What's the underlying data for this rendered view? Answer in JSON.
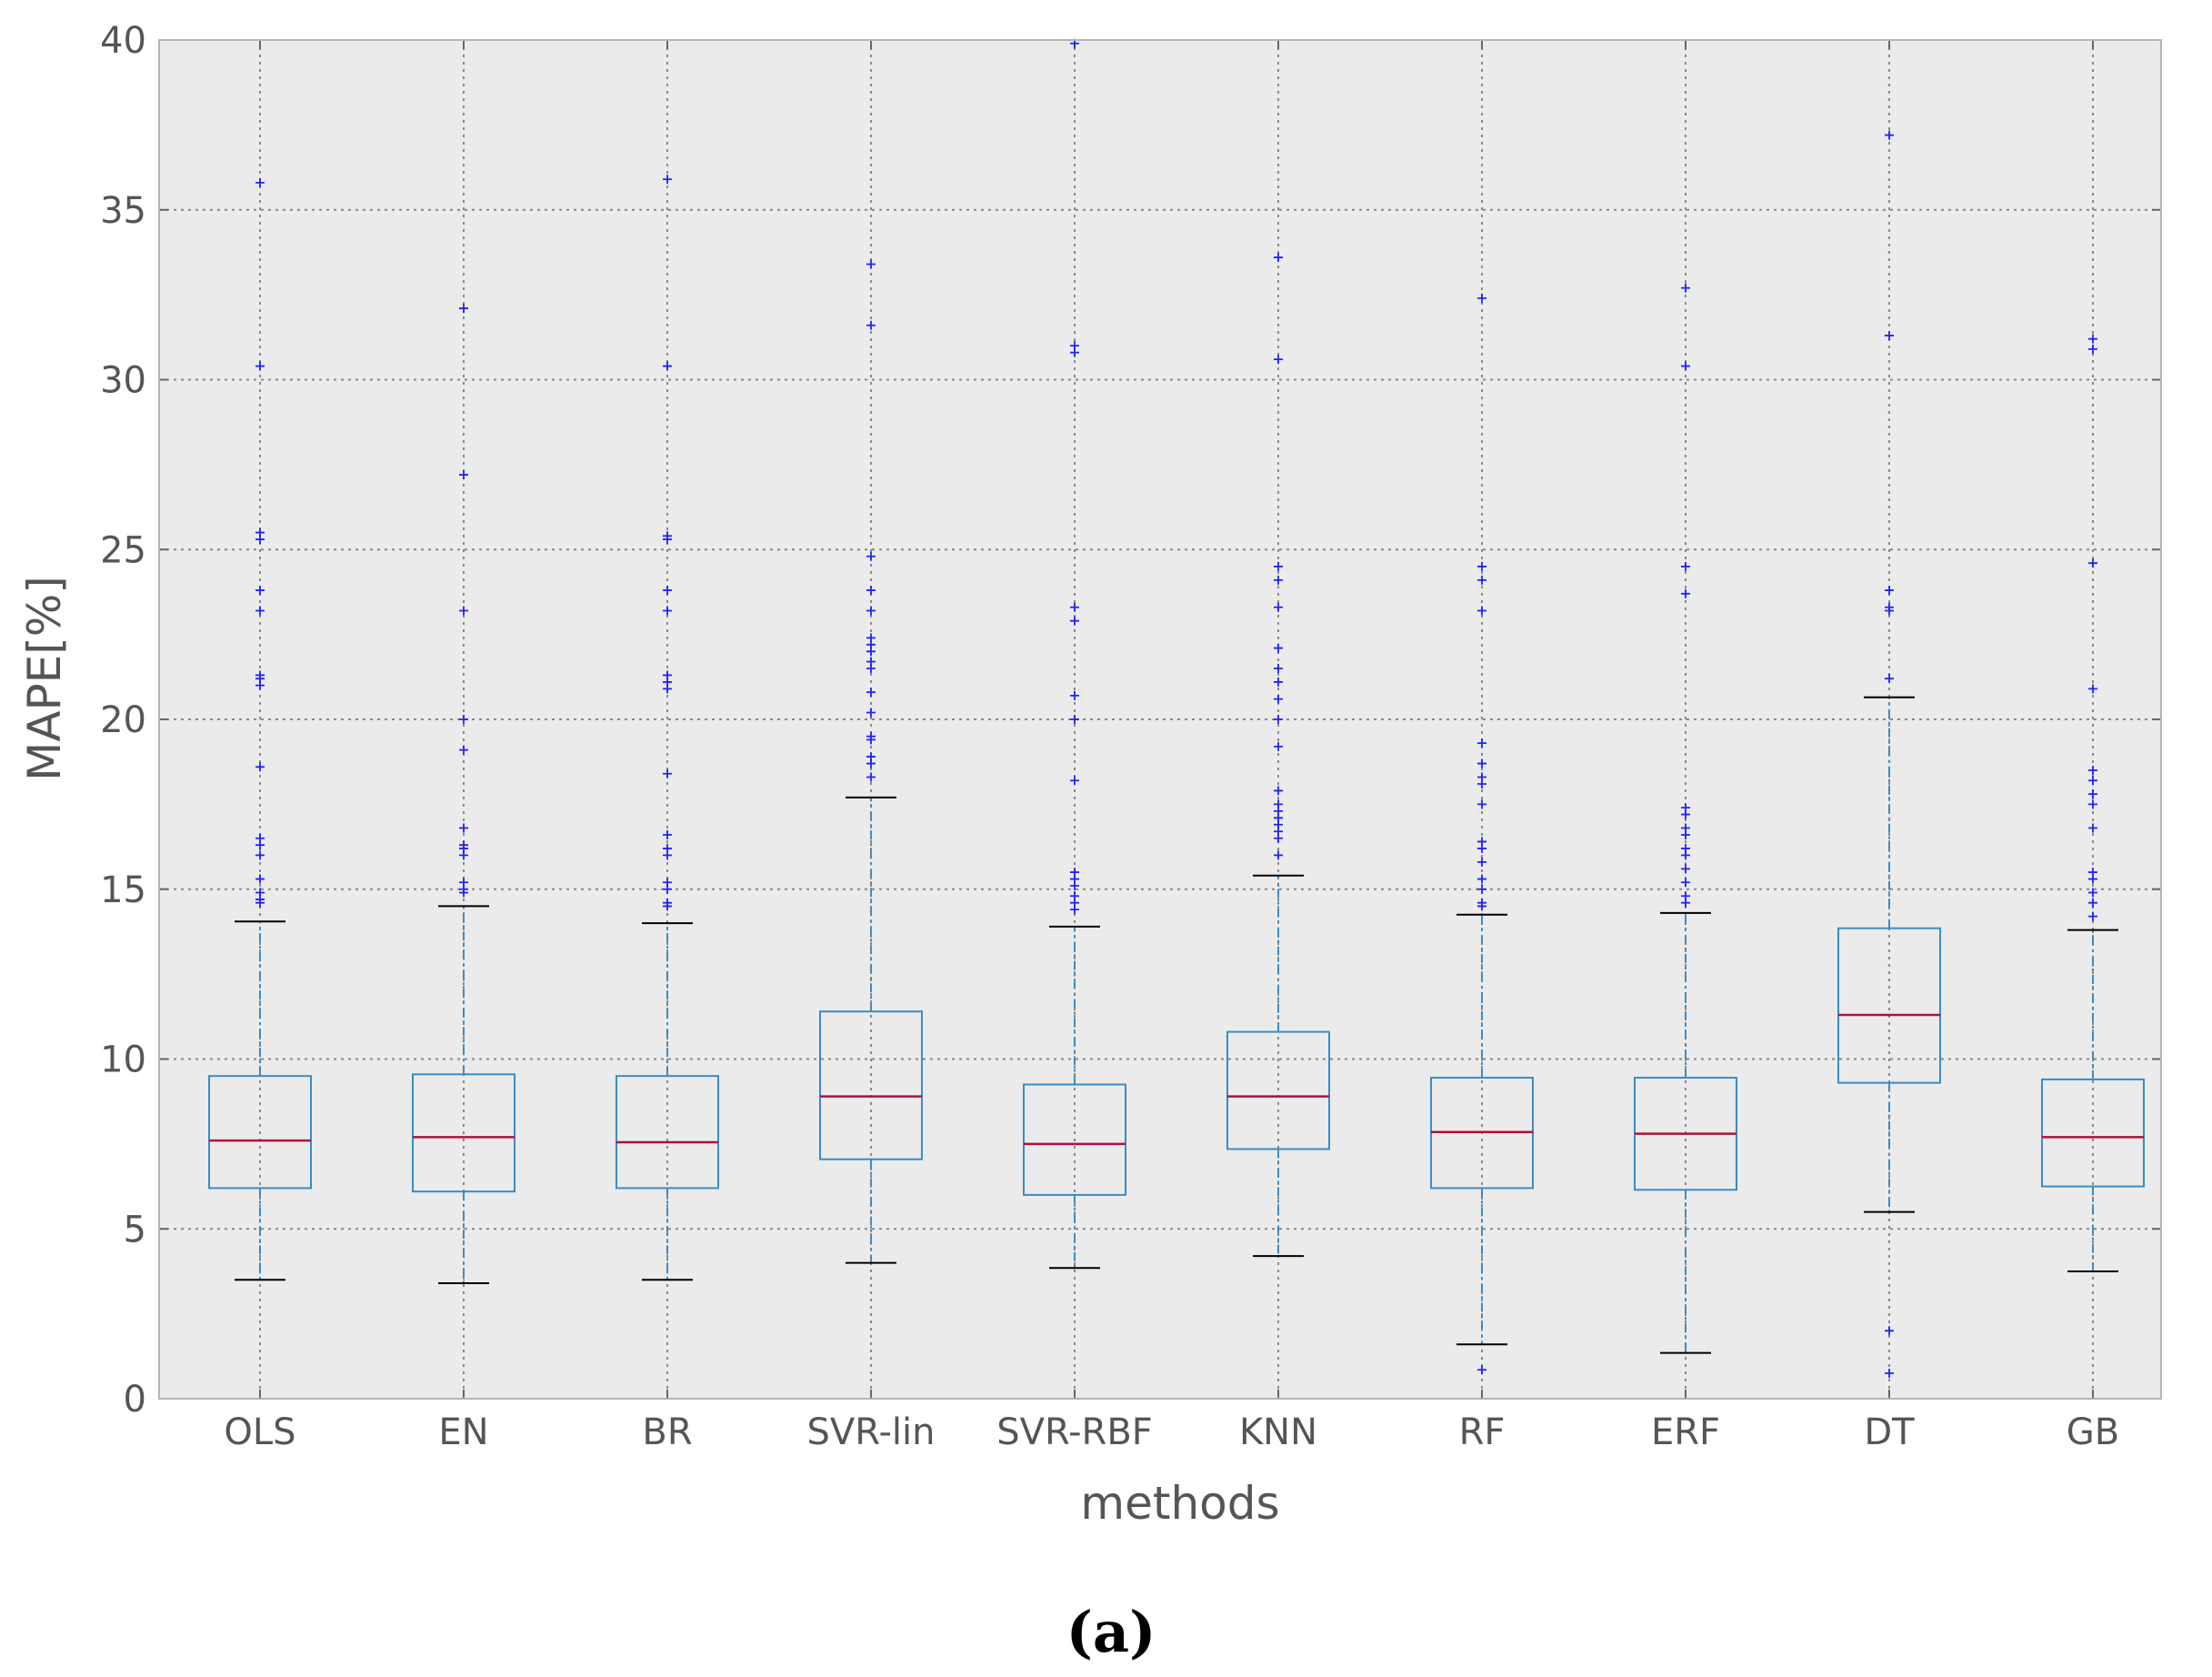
{
  "chart_data": {
    "type": "box",
    "xlabel": "methods",
    "ylabel": "MAPE[%]",
    "ylim": [
      0,
      40
    ],
    "yticks": [
      0,
      5,
      10,
      15,
      20,
      25,
      30,
      35,
      40
    ],
    "grid": true,
    "caption": "(a)",
    "colors": {
      "background": "#ebebeb",
      "box": "#3a8cc6",
      "median": "#b0103a",
      "cap": "#000000",
      "flier": "#2222ff",
      "grid": "#888888"
    },
    "categories": [
      "OLS",
      "EN",
      "BR",
      "SVR-lin",
      "SVR-RBF",
      "KNN",
      "RF",
      "ERF",
      "DT",
      "GB"
    ],
    "boxes": [
      {
        "label": "OLS",
        "whislo": 3.5,
        "q1": 6.2,
        "med": 7.6,
        "q3": 9.5,
        "whishi": 14.05,
        "fliers": [
          14.6,
          14.7,
          14.9,
          15.3,
          16.0,
          16.3,
          16.5,
          18.6,
          21.0,
          21.2,
          21.3,
          23.2,
          23.8,
          25.3,
          25.5,
          30.4,
          35.8
        ]
      },
      {
        "label": "EN",
        "whislo": 3.4,
        "q1": 6.1,
        "med": 7.7,
        "q3": 9.55,
        "whishi": 14.5,
        "fliers": [
          14.9,
          15.0,
          15.2,
          16.0,
          16.2,
          16.3,
          16.8,
          19.1,
          20.0,
          23.2,
          27.2,
          32.1
        ]
      },
      {
        "label": "BR",
        "whislo": 3.5,
        "q1": 6.2,
        "med": 7.55,
        "q3": 9.5,
        "whishi": 14.0,
        "fliers": [
          14.5,
          14.6,
          15.0,
          15.2,
          16.0,
          16.2,
          16.6,
          18.4,
          20.9,
          21.1,
          21.3,
          23.2,
          23.8,
          25.3,
          25.4,
          30.4,
          35.9
        ]
      },
      {
        "label": "SVR-lin",
        "whislo": 4.0,
        "q1": 7.05,
        "med": 8.9,
        "q3": 11.4,
        "whishi": 17.7,
        "fliers": [
          18.3,
          18.7,
          18.9,
          19.4,
          19.5,
          20.2,
          20.8,
          21.5,
          21.7,
          22.0,
          22.2,
          22.4,
          23.2,
          23.8,
          24.8,
          31.6,
          33.4
        ]
      },
      {
        "label": "SVR-RBF",
        "whislo": 3.85,
        "q1": 6.0,
        "med": 7.5,
        "q3": 9.25,
        "whishi": 13.9,
        "fliers": [
          14.4,
          14.6,
          14.8,
          15.1,
          15.3,
          15.5,
          18.2,
          20.0,
          20.7,
          22.9,
          23.3,
          30.8,
          31.0,
          39.9
        ]
      },
      {
        "label": "KNN",
        "whislo": 4.2,
        "q1": 7.35,
        "med": 8.9,
        "q3": 10.8,
        "whishi": 15.4,
        "fliers": [
          16.0,
          16.5,
          16.7,
          16.9,
          17.1,
          17.3,
          17.5,
          17.9,
          19.2,
          20.0,
          20.6,
          21.1,
          21.5,
          22.1,
          23.3,
          24.1,
          24.5,
          30.6,
          33.6
        ]
      },
      {
        "label": "RF",
        "whislo": 1.6,
        "q1": 6.2,
        "med": 7.85,
        "q3": 9.45,
        "whishi": 14.25,
        "fliers": [
          0.85,
          14.5,
          14.6,
          15.0,
          15.3,
          15.8,
          16.2,
          16.4,
          17.5,
          18.1,
          18.3,
          18.7,
          19.3,
          23.2,
          24.1,
          24.5,
          32.4
        ]
      },
      {
        "label": "ERF",
        "whislo": 1.35,
        "q1": 6.15,
        "med": 7.8,
        "q3": 9.45,
        "whishi": 14.3,
        "fliers": [
          14.6,
          14.8,
          15.2,
          15.6,
          16.0,
          16.2,
          16.6,
          16.8,
          17.2,
          17.4,
          23.7,
          24.5,
          30.4,
          32.7
        ]
      },
      {
        "label": "DT",
        "whislo": 5.5,
        "q1": 9.3,
        "med": 11.3,
        "q3": 13.85,
        "whishi": 20.65,
        "fliers": [
          0.75,
          2.0,
          21.2,
          23.2,
          23.3,
          23.8,
          31.3,
          37.2
        ]
      },
      {
        "label": "GB",
        "whislo": 3.75,
        "q1": 6.25,
        "med": 7.7,
        "q3": 9.4,
        "whishi": 13.8,
        "fliers": [
          14.2,
          14.6,
          14.9,
          15.3,
          15.5,
          16.8,
          17.5,
          17.8,
          18.2,
          18.5,
          20.9,
          24.6,
          30.9,
          31.2
        ]
      }
    ]
  }
}
